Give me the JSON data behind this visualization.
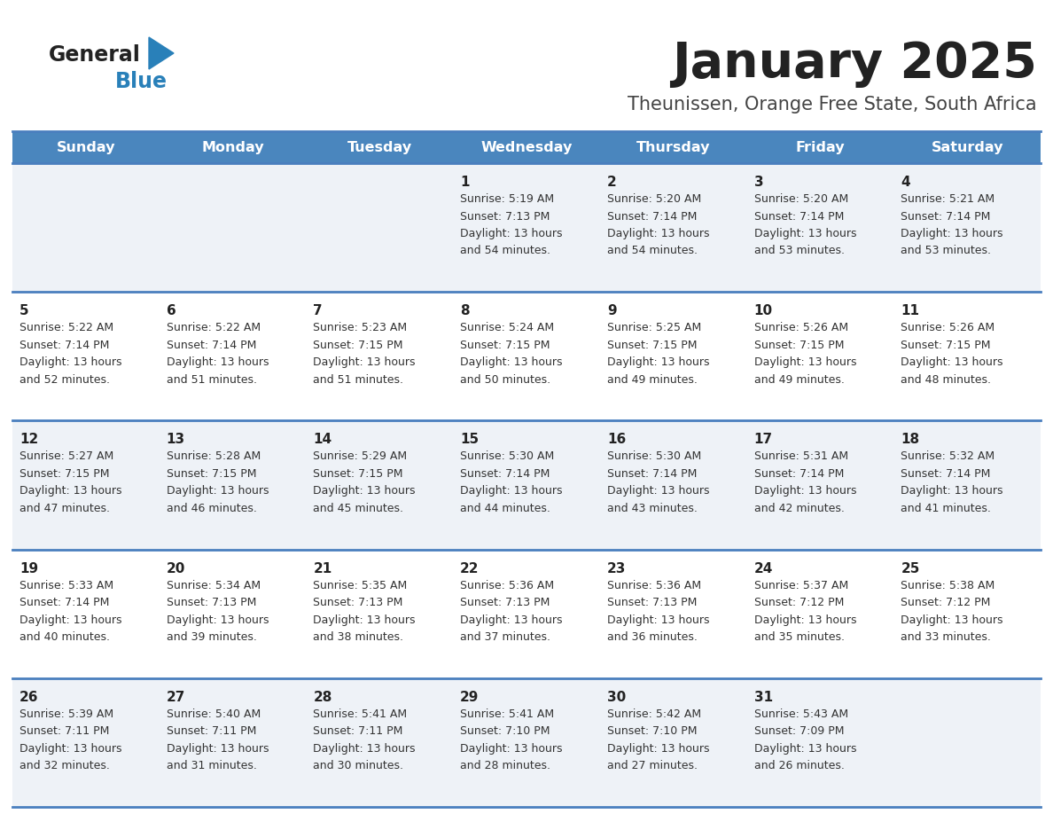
{
  "title": "January 2025",
  "subtitle": "Theunissen, Orange Free State, South Africa",
  "days_of_week": [
    "Sunday",
    "Monday",
    "Tuesday",
    "Wednesday",
    "Thursday",
    "Friday",
    "Saturday"
  ],
  "header_bg": "#4a86be",
  "header_text": "#ffffff",
  "row_bg_odd": "#eef2f7",
  "row_bg_even": "#ffffff",
  "border_color": "#4a7fbe",
  "title_color": "#222222",
  "subtitle_color": "#444444",
  "logo_general_color": "#222222",
  "logo_blue_color": "#2980b9",
  "calendar_data": [
    [
      {
        "day": null,
        "sunrise": null,
        "sunset": null,
        "daylight": null
      },
      {
        "day": null,
        "sunrise": null,
        "sunset": null,
        "daylight": null
      },
      {
        "day": null,
        "sunrise": null,
        "sunset": null,
        "daylight": null
      },
      {
        "day": 1,
        "sunrise": "5:19 AM",
        "sunset": "7:13 PM",
        "daylight_line1": "Daylight: 13 hours",
        "daylight_line2": "and 54 minutes."
      },
      {
        "day": 2,
        "sunrise": "5:20 AM",
        "sunset": "7:14 PM",
        "daylight_line1": "Daylight: 13 hours",
        "daylight_line2": "and 54 minutes."
      },
      {
        "day": 3,
        "sunrise": "5:20 AM",
        "sunset": "7:14 PM",
        "daylight_line1": "Daylight: 13 hours",
        "daylight_line2": "and 53 minutes."
      },
      {
        "day": 4,
        "sunrise": "5:21 AM",
        "sunset": "7:14 PM",
        "daylight_line1": "Daylight: 13 hours",
        "daylight_line2": "and 53 minutes."
      }
    ],
    [
      {
        "day": 5,
        "sunrise": "5:22 AM",
        "sunset": "7:14 PM",
        "daylight_line1": "Daylight: 13 hours",
        "daylight_line2": "and 52 minutes."
      },
      {
        "day": 6,
        "sunrise": "5:22 AM",
        "sunset": "7:14 PM",
        "daylight_line1": "Daylight: 13 hours",
        "daylight_line2": "and 51 minutes."
      },
      {
        "day": 7,
        "sunrise": "5:23 AM",
        "sunset": "7:15 PM",
        "daylight_line1": "Daylight: 13 hours",
        "daylight_line2": "and 51 minutes."
      },
      {
        "day": 8,
        "sunrise": "5:24 AM",
        "sunset": "7:15 PM",
        "daylight_line1": "Daylight: 13 hours",
        "daylight_line2": "and 50 minutes."
      },
      {
        "day": 9,
        "sunrise": "5:25 AM",
        "sunset": "7:15 PM",
        "daylight_line1": "Daylight: 13 hours",
        "daylight_line2": "and 49 minutes."
      },
      {
        "day": 10,
        "sunrise": "5:26 AM",
        "sunset": "7:15 PM",
        "daylight_line1": "Daylight: 13 hours",
        "daylight_line2": "and 49 minutes."
      },
      {
        "day": 11,
        "sunrise": "5:26 AM",
        "sunset": "7:15 PM",
        "daylight_line1": "Daylight: 13 hours",
        "daylight_line2": "and 48 minutes."
      }
    ],
    [
      {
        "day": 12,
        "sunrise": "5:27 AM",
        "sunset": "7:15 PM",
        "daylight_line1": "Daylight: 13 hours",
        "daylight_line2": "and 47 minutes."
      },
      {
        "day": 13,
        "sunrise": "5:28 AM",
        "sunset": "7:15 PM",
        "daylight_line1": "Daylight: 13 hours",
        "daylight_line2": "and 46 minutes."
      },
      {
        "day": 14,
        "sunrise": "5:29 AM",
        "sunset": "7:15 PM",
        "daylight_line1": "Daylight: 13 hours",
        "daylight_line2": "and 45 minutes."
      },
      {
        "day": 15,
        "sunrise": "5:30 AM",
        "sunset": "7:14 PM",
        "daylight_line1": "Daylight: 13 hours",
        "daylight_line2": "and 44 minutes."
      },
      {
        "day": 16,
        "sunrise": "5:30 AM",
        "sunset": "7:14 PM",
        "daylight_line1": "Daylight: 13 hours",
        "daylight_line2": "and 43 minutes."
      },
      {
        "day": 17,
        "sunrise": "5:31 AM",
        "sunset": "7:14 PM",
        "daylight_line1": "Daylight: 13 hours",
        "daylight_line2": "and 42 minutes."
      },
      {
        "day": 18,
        "sunrise": "5:32 AM",
        "sunset": "7:14 PM",
        "daylight_line1": "Daylight: 13 hours",
        "daylight_line2": "and 41 minutes."
      }
    ],
    [
      {
        "day": 19,
        "sunrise": "5:33 AM",
        "sunset": "7:14 PM",
        "daylight_line1": "Daylight: 13 hours",
        "daylight_line2": "and 40 minutes."
      },
      {
        "day": 20,
        "sunrise": "5:34 AM",
        "sunset": "7:13 PM",
        "daylight_line1": "Daylight: 13 hours",
        "daylight_line2": "and 39 minutes."
      },
      {
        "day": 21,
        "sunrise": "5:35 AM",
        "sunset": "7:13 PM",
        "daylight_line1": "Daylight: 13 hours",
        "daylight_line2": "and 38 minutes."
      },
      {
        "day": 22,
        "sunrise": "5:36 AM",
        "sunset": "7:13 PM",
        "daylight_line1": "Daylight: 13 hours",
        "daylight_line2": "and 37 minutes."
      },
      {
        "day": 23,
        "sunrise": "5:36 AM",
        "sunset": "7:13 PM",
        "daylight_line1": "Daylight: 13 hours",
        "daylight_line2": "and 36 minutes."
      },
      {
        "day": 24,
        "sunrise": "5:37 AM",
        "sunset": "7:12 PM",
        "daylight_line1": "Daylight: 13 hours",
        "daylight_line2": "and 35 minutes."
      },
      {
        "day": 25,
        "sunrise": "5:38 AM",
        "sunset": "7:12 PM",
        "daylight_line1": "Daylight: 13 hours",
        "daylight_line2": "and 33 minutes."
      }
    ],
    [
      {
        "day": 26,
        "sunrise": "5:39 AM",
        "sunset": "7:11 PM",
        "daylight_line1": "Daylight: 13 hours",
        "daylight_line2": "and 32 minutes."
      },
      {
        "day": 27,
        "sunrise": "5:40 AM",
        "sunset": "7:11 PM",
        "daylight_line1": "Daylight: 13 hours",
        "daylight_line2": "and 31 minutes."
      },
      {
        "day": 28,
        "sunrise": "5:41 AM",
        "sunset": "7:11 PM",
        "daylight_line1": "Daylight: 13 hours",
        "daylight_line2": "and 30 minutes."
      },
      {
        "day": 29,
        "sunrise": "5:41 AM",
        "sunset": "7:10 PM",
        "daylight_line1": "Daylight: 13 hours",
        "daylight_line2": "and 28 minutes."
      },
      {
        "day": 30,
        "sunrise": "5:42 AM",
        "sunset": "7:10 PM",
        "daylight_line1": "Daylight: 13 hours",
        "daylight_line2": "and 27 minutes."
      },
      {
        "day": 31,
        "sunrise": "5:43 AM",
        "sunset": "7:09 PM",
        "daylight_line1": "Daylight: 13 hours",
        "daylight_line2": "and 26 minutes."
      },
      {
        "day": null,
        "sunrise": null,
        "sunset": null,
        "daylight_line1": null,
        "daylight_line2": null
      }
    ]
  ]
}
